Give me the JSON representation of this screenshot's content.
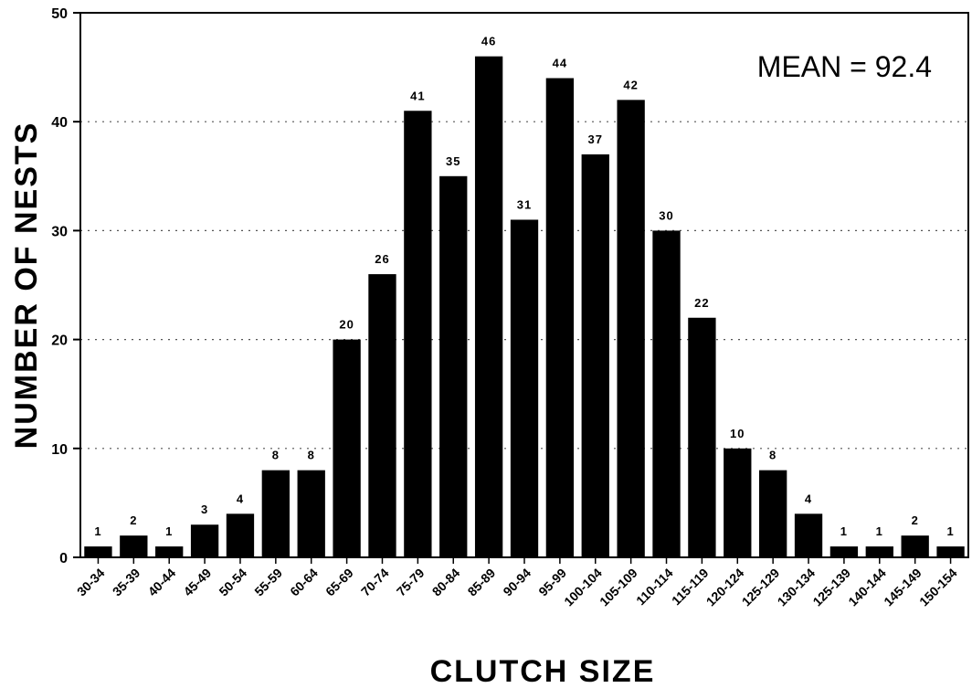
{
  "chart_data": {
    "type": "bar",
    "xlabel": "CLUTCH SIZE",
    "ylabel": "NUMBER OF NESTS",
    "ylim": [
      0,
      50
    ],
    "yticks": [
      "0",
      "10",
      "20",
      "30",
      "40",
      "50"
    ],
    "grid": "horizontal dotted",
    "annotation": "MEAN = 92.4",
    "bar_color": "#000000",
    "categories": [
      "30-34",
      "35-39",
      "40-44",
      "45-49",
      "50-54",
      "55-59",
      "60-64",
      "65-69",
      "70-74",
      "75-79",
      "80-84",
      "85-89",
      "90-94",
      "95-99",
      "100-104",
      "105-109",
      "110-114",
      "115-119",
      "120-124",
      "125-129",
      "130-134",
      "125-139",
      "140-144",
      "145-149",
      "150-154"
    ],
    "values": [
      1,
      2,
      1,
      3,
      4,
      8,
      8,
      20,
      26,
      41,
      35,
      46,
      31,
      44,
      37,
      42,
      30,
      22,
      10,
      8,
      4,
      1,
      1,
      2,
      1
    ]
  }
}
